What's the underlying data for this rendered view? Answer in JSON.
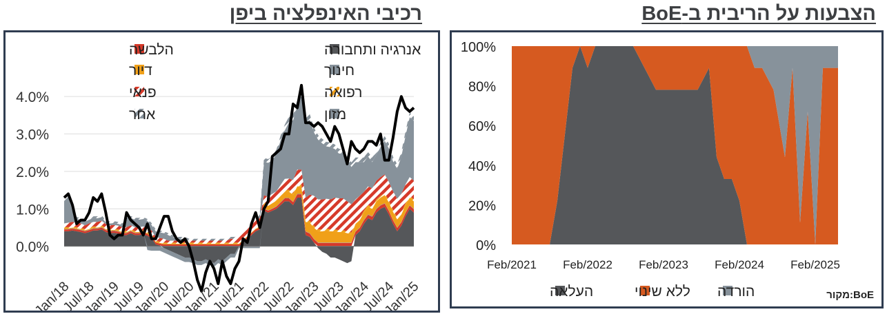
{
  "left_title": "רכיבי האינפלציה ביפן",
  "right_title": "הצבעות על הריבית ב-BoE",
  "source": "מקור:BoE",
  "colors": {
    "clothing": "#d63a2a",
    "energy": "#55575a",
    "housing": "#f0a019",
    "education": "#87929b",
    "food": "#87929b",
    "hike": "#55575a",
    "hold": "#d65a20",
    "cut": "#87929b",
    "line": "#000000"
  },
  "chart_data": [
    {
      "type": "area",
      "title": "רכיבי האינפלציה ביפן",
      "stacked": true,
      "x_tick_labels": [
        "Jan/18",
        "Jul/18",
        "Jan/19",
        "Jul/19",
        "Jan/20",
        "Jul/20",
        "Jan/21",
        "Jul/21",
        "Jan/22",
        "Jul/22",
        "Jan/23",
        "Jul/23",
        "Jan/24",
        "Jul/24",
        "Jan/25"
      ],
      "ylim": [
        -0.01,
        0.045
      ],
      "y_tick_labels": [
        "0.0%",
        "1.0%",
        "2.0%",
        "3.0%",
        "4.0%"
      ],
      "legend": [
        {
          "key": "energy",
          "label": "אנרגיה ותחבורה",
          "pattern": "solid"
        },
        {
          "key": "clothing",
          "label": "הלבשה",
          "pattern": "solid"
        },
        {
          "key": "education",
          "label": "חינוך",
          "pattern": "solid"
        },
        {
          "key": "housing",
          "label": "דיור",
          "pattern": "solid"
        },
        {
          "key": "medical",
          "label": "רפואה",
          "pattern": "hatch-orange"
        },
        {
          "key": "leisure",
          "label": "פנאי",
          "pattern": "hatch-red"
        },
        {
          "key": "food",
          "label": "מזון",
          "pattern": "solid"
        },
        {
          "key": "other",
          "label": "אחר",
          "pattern": "hatch-grey"
        }
      ],
      "series": {
        "energy": [
          0.4,
          0.4,
          0.42,
          0.4,
          0.38,
          0.35,
          0.38,
          0.42,
          0.42,
          0.45,
          0.38,
          0.35,
          0.36,
          0.34,
          0.3,
          0.3,
          0.35,
          0.3,
          0.3,
          0.32,
          0.28,
          0.22,
          0.05,
          0.02,
          -0.05,
          -0.1,
          -0.15,
          -0.2,
          -0.25,
          -0.3,
          -0.3,
          -0.35,
          -0.4,
          -0.4,
          -0.35,
          -0.4,
          -0.45,
          -0.35,
          -0.4,
          -0.3,
          -0.2,
          -0.2,
          0.0,
          0.1,
          0.2,
          0.3,
          0.4,
          0.45,
          0.95,
          0.9,
          0.95,
          1.0,
          1.1,
          1.2,
          1.2,
          1.1,
          1.3,
          1.3,
          0.3,
          0.25,
          0.1,
          -0.05,
          -0.15,
          -0.2,
          -0.3,
          -0.3,
          -0.35,
          -0.4,
          -0.45,
          -0.4,
          0.3,
          0.4,
          0.6,
          0.75,
          0.7,
          0.9,
          1.0,
          1.05,
          0.85,
          0.6,
          0.4,
          0.55,
          0.8,
          1.0,
          0.9
        ],
        "clothing": [
          0.05,
          0.05,
          0.05,
          0.05,
          0.05,
          0.05,
          0.05,
          0.05,
          0.05,
          0.05,
          0.05,
          0.05,
          0.05,
          0.05,
          0.05,
          0.05,
          0.05,
          0.05,
          0.05,
          0.05,
          0.05,
          0.05,
          0.05,
          0.05,
          0.05,
          0.05,
          0.05,
          0.05,
          0.05,
          0.05,
          0.05,
          0.05,
          0.05,
          0.05,
          0.05,
          0.05,
          0.05,
          0.05,
          0.05,
          0.05,
          0.05,
          0.05,
          0.05,
          0.05,
          0.05,
          0.05,
          0.05,
          0.05,
          0.05,
          0.05,
          0.05,
          0.06,
          0.07,
          0.08,
          0.08,
          0.08,
          0.09,
          0.09,
          0.09,
          0.09,
          0.09,
          0.09,
          0.09,
          0.09,
          0.09,
          0.09,
          0.09,
          0.09,
          0.09,
          0.09,
          0.09,
          0.09,
          0.09,
          0.09,
          0.09,
          0.09,
          0.09,
          0.09,
          0.09,
          0.09,
          0.09,
          0.09,
          0.09,
          0.09,
          0.09
        ],
        "education": [
          0.01,
          0.01,
          0.01,
          0.01,
          0.01,
          0.01,
          0.01,
          0.01,
          0.01,
          0.01,
          0.01,
          0.01,
          0.01,
          0.01,
          0.01,
          0.01,
          0.01,
          0.01,
          0.01,
          0.01,
          -0.1,
          -0.12,
          -0.12,
          -0.12,
          -0.12,
          -0.12,
          -0.12,
          -0.12,
          -0.12,
          -0.12,
          -0.12,
          -0.1,
          -0.1,
          -0.1,
          -0.1,
          -0.1,
          -0.1,
          -0.1,
          -0.1,
          -0.1,
          -0.1,
          -0.1,
          -0.05,
          -0.05,
          -0.05,
          -0.05,
          -0.05,
          -0.05,
          0.01,
          0.01,
          0.01,
          0.01,
          0.01,
          0.01,
          0.01,
          0.01,
          0.01,
          0.01,
          0.01,
          0.01,
          0.01,
          0.01,
          0.01,
          0.01,
          0.01,
          0.01,
          0.01,
          0.01,
          0.01,
          0.01,
          0.01,
          0.01,
          0.01,
          0.01,
          0.01,
          0.01,
          0.01,
          0.01,
          0.01,
          0.01,
          0.01,
          0.01,
          0.01,
          0.01,
          0.01
        ],
        "housing": [
          0.02,
          0.02,
          0.02,
          0.02,
          0.02,
          0.02,
          0.02,
          0.02,
          0.02,
          0.02,
          0.02,
          0.02,
          0.02,
          0.02,
          0.02,
          0.02,
          0.02,
          0.02,
          0.02,
          0.02,
          0.02,
          0.02,
          0.02,
          0.02,
          0.02,
          0.02,
          0.02,
          0.02,
          0.02,
          0.02,
          0.02,
          0.02,
          0.02,
          0.02,
          0.02,
          0.02,
          0.02,
          0.02,
          0.02,
          0.02,
          0.02,
          0.02,
          0.02,
          0.02,
          0.02,
          0.02,
          0.02,
          0.02,
          0.1,
          0.12,
          0.14,
          0.15,
          0.16,
          0.16,
          0.17,
          0.18,
          0.2,
          0.2,
          0.25,
          0.28,
          0.3,
          0.3,
          0.3,
          0.32,
          0.3,
          0.3,
          0.28,
          0.28,
          0.25,
          0.22,
          0.2,
          0.2,
          0.2,
          0.2,
          0.2,
          0.2,
          0.2,
          0.22,
          0.22,
          0.22,
          0.22,
          0.2,
          0.2,
          0.2,
          0.2
        ],
        "medical": [
          0.03,
          0.03,
          0.03,
          0.03,
          0.03,
          0.03,
          0.03,
          0.03,
          0.03,
          0.03,
          0.03,
          0.03,
          0.03,
          0.03,
          0.03,
          0.03,
          0.03,
          0.03,
          0.03,
          0.03,
          0.03,
          0.03,
          0.03,
          0.03,
          0.03,
          0.03,
          0.03,
          0.03,
          0.03,
          0.03,
          0.03,
          0.03,
          0.03,
          0.03,
          0.03,
          0.03,
          0.03,
          0.03,
          0.03,
          0.03,
          0.03,
          0.03,
          0.03,
          0.03,
          0.03,
          0.03,
          0.03,
          0.03,
          0.05,
          0.05,
          0.05,
          0.05,
          0.05,
          0.05,
          0.05,
          0.05,
          0.05,
          0.05,
          0.05,
          0.05,
          0.05,
          0.05,
          0.05,
          0.05,
          0.05,
          0.05,
          0.05,
          0.05,
          0.05,
          0.05,
          0.05,
          0.05,
          0.05,
          0.05,
          0.05,
          0.05,
          0.05,
          0.05,
          0.05,
          0.05,
          0.05,
          0.05,
          0.05,
          0.05,
          0.05
        ],
        "leisure": [
          0.1,
          0.12,
          0.12,
          0.12,
          0.12,
          0.1,
          0.12,
          0.12,
          0.12,
          0.12,
          0.1,
          0.1,
          0.1,
          0.1,
          0.1,
          0.1,
          0.1,
          0.1,
          0.1,
          0.1,
          0.1,
          0.1,
          0.1,
          0.1,
          0.1,
          0.05,
          0.05,
          0.05,
          0.05,
          0.05,
          0.05,
          0.05,
          0.05,
          0.05,
          0.05,
          0.05,
          0.05,
          0.05,
          0.05,
          0.05,
          0.1,
          0.1,
          0.15,
          0.15,
          0.15,
          0.2,
          0.2,
          0.2,
          0.2,
          0.2,
          0.2,
          0.2,
          0.25,
          0.3,
          0.3,
          0.35,
          0.4,
          0.4,
          0.6,
          0.7,
          0.8,
          0.8,
          0.8,
          0.8,
          0.8,
          0.85,
          0.85,
          0.85,
          0.8,
          0.75,
          0.6,
          0.6,
          0.5,
          0.5,
          0.5,
          0.5,
          0.5,
          0.5,
          0.5,
          0.5,
          0.5,
          0.5,
          0.5,
          0.5,
          0.5
        ],
        "food": [
          0.6,
          0.7,
          0.3,
          0.1,
          0.1,
          0.1,
          0.1,
          0.1,
          0.1,
          0.1,
          0.05,
          0.05,
          0.05,
          0.05,
          0.05,
          0.2,
          0.2,
          0.2,
          0.2,
          0.2,
          0.2,
          0.15,
          0.15,
          0.15,
          0.15,
          0.15,
          0.1,
          0.05,
          0.05,
          0.05,
          0.0,
          0.0,
          0.0,
          0.0,
          0.0,
          0.0,
          0.0,
          0.0,
          0.0,
          0.0,
          0.0,
          0.0,
          0.0,
          0.0,
          0.0,
          0.0,
          0.0,
          0.1,
          0.9,
          0.9,
          0.9,
          1.0,
          1.2,
          1.3,
          1.5,
          1.6,
          1.7,
          1.9,
          2.0,
          2.0,
          1.7,
          1.6,
          1.5,
          1.4,
          1.4,
          1.3,
          1.2,
          1.2,
          1.1,
          1.0,
          1.0,
          0.9,
          0.8,
          0.8,
          0.7,
          0.7,
          0.8,
          0.9,
          0.9,
          0.8,
          0.8,
          1.0,
          1.3,
          1.6,
          1.6
        ],
        "other": [
          0.05,
          0.05,
          0.05,
          0.05,
          0.05,
          0.05,
          0.05,
          0.05,
          0.05,
          0.05,
          0.05,
          0.05,
          0.05,
          0.05,
          0.05,
          0.05,
          0.05,
          0.05,
          0.05,
          0.05,
          0.05,
          0.05,
          0.05,
          0.05,
          0.05,
          0.05,
          0.05,
          0.05,
          0.05,
          0.05,
          0.05,
          0.05,
          0.05,
          0.05,
          0.05,
          0.05,
          0.05,
          0.05,
          0.05,
          0.05,
          0.05,
          0.05,
          0.05,
          0.05,
          0.05,
          0.05,
          0.05,
          0.05,
          0.1,
          0.1,
          0.1,
          0.12,
          0.12,
          0.15,
          0.15,
          0.15,
          0.15,
          0.15,
          0.15,
          0.15,
          0.12,
          0.12,
          0.12,
          0.12,
          0.12,
          0.12,
          0.12,
          0.12,
          0.12,
          0.12,
          0.12,
          0.12,
          0.12,
          0.12,
          0.12,
          0.12,
          0.12,
          0.12,
          0.12,
          0.12,
          0.12,
          0.12,
          0.12,
          0.12,
          0.12
        ]
      },
      "headline": [
        1.3,
        1.4,
        1.1,
        0.6,
        0.7,
        0.7,
        0.9,
        1.3,
        1.2,
        1.4,
        0.9,
        0.3,
        0.2,
        0.3,
        0.3,
        0.9,
        0.7,
        0.6,
        0.5,
        0.3,
        0.6,
        0.2,
        0.2,
        0.5,
        0.8,
        0.8,
        0.4,
        0.2,
        0.1,
        0.2,
        0.0,
        -0.4,
        -0.9,
        -1.2,
        -0.7,
        -0.4,
        -0.6,
        -1.0,
        -0.4,
        -0.8,
        -1.0,
        -0.6,
        -0.4,
        0.2,
        0.1,
        0.6,
        0.9,
        0.5,
        1.0,
        1.2,
        2.4,
        2.5,
        2.6,
        3.0,
        3.0,
        3.8,
        3.7,
        4.3,
        3.3,
        3.3,
        3.2,
        3.3,
        3.2,
        3.0,
        2.8,
        3.2,
        3.0,
        2.6,
        2.2,
        2.8,
        2.6,
        2.5,
        2.6,
        2.8,
        2.8,
        2.7,
        3.0,
        2.3,
        2.3,
        2.9,
        3.6,
        4.0,
        3.7,
        3.6,
        3.7
      ]
    },
    {
      "type": "area",
      "title": "הצבעות על הריבית ב-BoE",
      "stacked": true,
      "x_tick_labels": [
        "Feb/2021",
        "Feb/2022",
        "Feb/2023",
        "Feb/2024",
        "Feb/2025"
      ],
      "ylim": [
        0,
        1
      ],
      "y_tick_labels": [
        "0%",
        "20%",
        "40%",
        "60%",
        "80%",
        "100%"
      ],
      "legend": [
        {
          "key": "hike",
          "label": "העלאה"
        },
        {
          "key": "hold",
          "label": "ללא שינוי"
        },
        {
          "key": "cut",
          "label": "הורדה"
        }
      ],
      "x": [
        2021.0,
        2021.5,
        2021.6,
        2021.8,
        2021.9,
        2022.0,
        2022.1,
        2022.2,
        2022.3,
        2022.45,
        2022.6,
        2022.9,
        2023.0,
        2023.1,
        2023.3,
        2023.45,
        2023.6,
        2023.7,
        2023.8,
        2023.9,
        2024.0,
        2024.1,
        2024.2,
        2024.3,
        2024.45,
        2024.6,
        2024.7,
        2024.8,
        2024.9,
        2025.0,
        2025.1,
        2025.3
      ],
      "values": {
        "hike": [
          0,
          0,
          0.22,
          0.89,
          1.0,
          0.89,
          1.0,
          1.0,
          1.0,
          1.0,
          1.0,
          0.78,
          0.78,
          0.78,
          0.78,
          0.78,
          0.89,
          0.44,
          0.33,
          0.33,
          0.22,
          0,
          0,
          0,
          0,
          0,
          0,
          0,
          0,
          0,
          0,
          0
        ],
        "hold": [
          1.0,
          1.0,
          0.78,
          0.11,
          0,
          0.11,
          0,
          0,
          0,
          0,
          0,
          0.22,
          0.22,
          0.22,
          0.22,
          0.22,
          0.11,
          0.56,
          0.67,
          0.67,
          0.78,
          1.0,
          0.89,
          0.89,
          0.78,
          0.44,
          0.89,
          0.11,
          0.67,
          0,
          0.89,
          0.89
        ],
        "cut": [
          0,
          0,
          0,
          0,
          0,
          0,
          0,
          0,
          0,
          0,
          0,
          0,
          0,
          0,
          0,
          0,
          0,
          0,
          0,
          0,
          0,
          0,
          0.11,
          0.11,
          0.22,
          0.56,
          0.11,
          0.89,
          0.33,
          1.0,
          0.11,
          0.11
        ]
      }
    }
  ]
}
